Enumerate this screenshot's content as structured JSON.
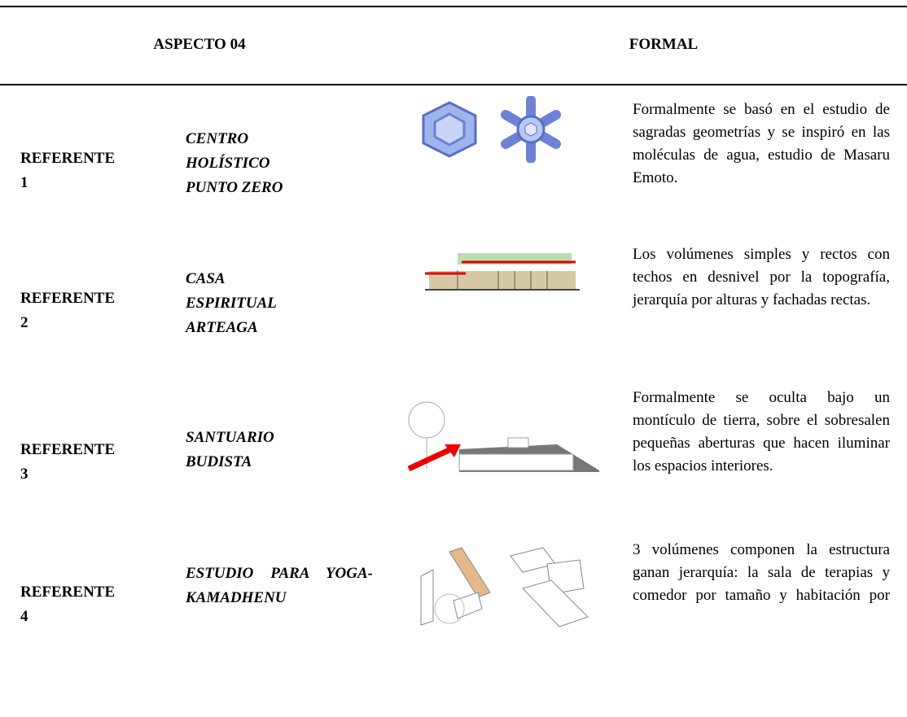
{
  "table": {
    "header": [
      "ASPECTO 04",
      "FORMAL"
    ],
    "rows": [
      {
        "label": "REFERENTE 1",
        "name": "CENTRO HOLÍSTICO PUNTO ZERO",
        "description": "Formalmente se basó en el estudio de sagradas geometrías y se inspiró en las moléculas de agua, estudio de Masaru Emoto."
      },
      {
        "label": "REFERENTE 2",
        "name": "CASA ESPIRITUAL ARTEAGA",
        "description": "Los volúmenes simples y rectos con techos en desnivel por la topografía, jerarquía por alturas y fachadas rectas."
      },
      {
        "label": "REFERENTE 3",
        "name": "SANTUARIO BUDISTA",
        "description": "Formalmente se oculta bajo un montículo de tierra, sobre el sobresalen pequeñas aberturas que hacen iluminar los espacios interiores."
      },
      {
        "label": "REFERENTE 4",
        "name": "ESTUDIO PARA YOGA-KAMADHENU",
        "description": "3 volúmenes componen la estructura ganan jerarquía: la sala de terapias y comedor por tamaño y habitación por"
      }
    ]
  }
}
